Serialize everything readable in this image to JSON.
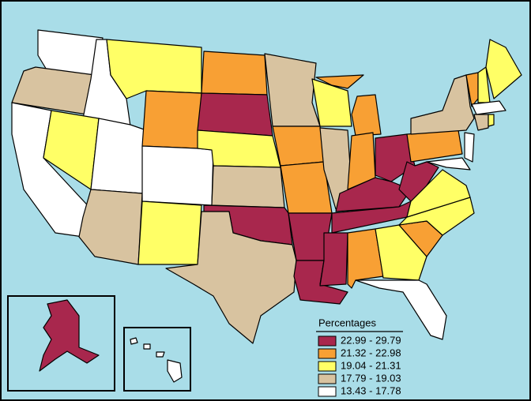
{
  "legend": {
    "title": "Percentages",
    "items": [
      {
        "label": "22.99 - 29.79",
        "color": "#a8274d"
      },
      {
        "label": "21.32 - 22.98",
        "color": "#f8a034"
      },
      {
        "label": "19.04 - 21.31",
        "color": "#ffff66"
      },
      {
        "label": "17.79 - 19.03",
        "color": "#d8c3a0"
      },
      {
        "label": "13.43 - 17.78",
        "color": "#ffffff"
      }
    ]
  }
}
